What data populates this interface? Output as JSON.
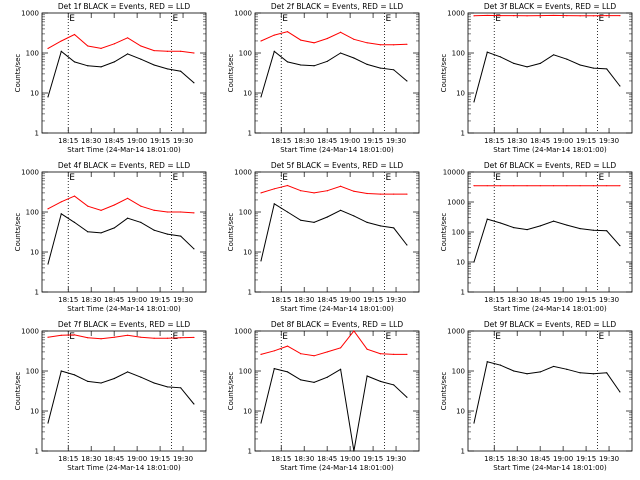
{
  "page": {
    "background": "#ffffff",
    "event_color": "#000000",
    "lld_color": "#ff0000"
  },
  "chart_data": [
    {
      "type": "line",
      "title": "Det 1f BLACK = Events, RED = LLD",
      "xlabel": "Start Time (24-Mar-14 18:01:00)",
      "ylabel": "Counts/sec",
      "x_ticks": [
        "18:15",
        "18:30",
        "18:45",
        "19:00",
        "19:15",
        "19:30"
      ],
      "y_ticks": [
        "1",
        "10",
        "100",
        "1000"
      ],
      "ylim": [
        1,
        1000
      ],
      "y_scale": "log",
      "markers": [
        "E",
        "E"
      ],
      "series": [
        {
          "name": "Events",
          "color": "#000000",
          "x": [
            0,
            1,
            2,
            3,
            4,
            5,
            6,
            7,
            8,
            9,
            10,
            11
          ],
          "values": [
            8,
            110,
            60,
            48,
            45,
            60,
            95,
            70,
            50,
            40,
            35,
            18
          ]
        },
        {
          "name": "LLD",
          "color": "#ff0000",
          "x": [
            0,
            1,
            2,
            3,
            4,
            5,
            6,
            7,
            8,
            9,
            10,
            11
          ],
          "values": [
            130,
            200,
            290,
            150,
            130,
            170,
            240,
            150,
            115,
            110,
            110,
            100
          ]
        }
      ]
    },
    {
      "type": "line",
      "title": "Det 2f BLACK = Events, RED = LLD",
      "xlabel": "Start Time (24-Mar-14 18:01:00)",
      "ylabel": "Counts/sec",
      "x_ticks": [
        "18:15",
        "18:30",
        "18:45",
        "19:00",
        "19:15",
        "19:30"
      ],
      "y_ticks": [
        "1",
        "10",
        "100",
        "1000"
      ],
      "ylim": [
        1,
        1000
      ],
      "y_scale": "log",
      "markers": [
        "E",
        "E"
      ],
      "series": [
        {
          "name": "Events",
          "color": "#000000",
          "x": [
            0,
            1,
            2,
            3,
            4,
            5,
            6,
            7,
            8,
            9,
            10,
            11
          ],
          "values": [
            8,
            110,
            60,
            50,
            48,
            62,
            100,
            75,
            52,
            42,
            38,
            20
          ]
        },
        {
          "name": "LLD",
          "color": "#ff0000",
          "x": [
            0,
            1,
            2,
            3,
            4,
            5,
            6,
            7,
            8,
            9,
            10,
            11
          ],
          "values": [
            200,
            280,
            340,
            210,
            180,
            230,
            330,
            220,
            180,
            160,
            160,
            165
          ]
        }
      ]
    },
    {
      "type": "line",
      "title": "Det 3f BLACK = Events, RED = LLD",
      "xlabel": "Start Time (24-Mar-14 18:01:00)",
      "ylabel": "Counts/sec",
      "x_ticks": [
        "18:15",
        "18:30",
        "18:45",
        "19:00",
        "19:15",
        "19:30"
      ],
      "y_ticks": [
        "1",
        "10",
        "100",
        "1000"
      ],
      "ylim": [
        1,
        1000
      ],
      "y_scale": "log",
      "markers": [
        "E",
        "E"
      ],
      "series": [
        {
          "name": "Events",
          "color": "#000000",
          "x": [
            0,
            1,
            2,
            3,
            4,
            5,
            6,
            7,
            8,
            9,
            10,
            11
          ],
          "values": [
            6,
            105,
            80,
            55,
            45,
            55,
            90,
            70,
            50,
            42,
            40,
            15
          ]
        },
        {
          "name": "LLD",
          "color": "#ff0000",
          "x": [
            0,
            1,
            2,
            3,
            4,
            5,
            6,
            7,
            8,
            9,
            10,
            11
          ],
          "values": [
            850,
            870,
            860,
            860,
            850,
            860,
            870,
            860,
            850,
            850,
            860,
            860
          ]
        }
      ]
    },
    {
      "type": "line",
      "title": "Det 4f BLACK = Events, RED = LLD",
      "xlabel": "Start Time (24-Mar-14 18:01:00)",
      "ylabel": "Counts/sec",
      "x_ticks": [
        "18:15",
        "18:30",
        "18:45",
        "19:00",
        "19:15",
        "19:30"
      ],
      "y_ticks": [
        "1",
        "10",
        "100",
        "1000"
      ],
      "ylim": [
        1,
        1000
      ],
      "y_scale": "log",
      "markers": [
        "E",
        "E"
      ],
      "series": [
        {
          "name": "Events",
          "color": "#000000",
          "x": [
            0,
            1,
            2,
            3,
            4,
            5,
            6,
            7,
            8,
            9,
            10,
            11
          ],
          "values": [
            5,
            90,
            55,
            32,
            30,
            40,
            70,
            55,
            35,
            28,
            25,
            12
          ]
        },
        {
          "name": "LLD",
          "color": "#ff0000",
          "x": [
            0,
            1,
            2,
            3,
            4,
            5,
            6,
            7,
            8,
            9,
            10,
            11
          ],
          "values": [
            120,
            180,
            250,
            140,
            110,
            150,
            220,
            140,
            110,
            100,
            100,
            95
          ]
        }
      ]
    },
    {
      "type": "line",
      "title": "Det 5f BLACK = Events, RED = LLD",
      "xlabel": "Start Time (24-Mar-14 18:01:00)",
      "ylabel": "Counts/sec",
      "x_ticks": [
        "18:15",
        "18:30",
        "18:45",
        "19:00",
        "19:15",
        "19:30"
      ],
      "y_ticks": [
        "1",
        "10",
        "100",
        "1000"
      ],
      "ylim": [
        1,
        1000
      ],
      "y_scale": "log",
      "markers": [
        "E",
        "E"
      ],
      "series": [
        {
          "name": "Events",
          "color": "#000000",
          "x": [
            0,
            1,
            2,
            3,
            4,
            5,
            6,
            7,
            8,
            9,
            10,
            11
          ],
          "values": [
            6,
            160,
            100,
            62,
            55,
            75,
            110,
            80,
            55,
            45,
            40,
            15
          ]
        },
        {
          "name": "LLD",
          "color": "#ff0000",
          "x": [
            0,
            1,
            2,
            3,
            4,
            5,
            6,
            7,
            8,
            9,
            10,
            11
          ],
          "values": [
            300,
            380,
            460,
            340,
            300,
            340,
            440,
            330,
            290,
            280,
            280,
            280
          ]
        }
      ]
    },
    {
      "type": "line",
      "title": "Det 6f BLACK = Events, RED = LLD",
      "xlabel": "Start Time (24-Mar-14 18:01:00)",
      "ylabel": "Counts/sec",
      "x_ticks": [
        "18:15",
        "18:30",
        "18:45",
        "19:00",
        "19:15",
        "19:30"
      ],
      "y_ticks": [
        "1",
        "10",
        "100",
        "1000",
        "10000"
      ],
      "ylim": [
        1,
        10000
      ],
      "y_scale": "log",
      "markers": [
        "E",
        "E"
      ],
      "series": [
        {
          "name": "Events",
          "color": "#000000",
          "x": [
            0,
            1,
            2,
            3,
            4,
            5,
            6,
            7,
            8,
            9,
            10,
            11
          ],
          "values": [
            10,
            270,
            200,
            140,
            120,
            160,
            230,
            170,
            130,
            115,
            110,
            35
          ]
        },
        {
          "name": "LLD",
          "color": "#ff0000",
          "x": [
            0,
            1,
            2,
            3,
            4,
            5,
            6,
            7,
            8,
            9,
            10,
            11
          ],
          "values": [
            3500,
            3500,
            3500,
            3500,
            3500,
            3500,
            3500,
            3500,
            3500,
            3500,
            3500,
            3500
          ]
        }
      ]
    },
    {
      "type": "line",
      "title": "Det 7f BLACK = Events, RED = LLD",
      "xlabel": "Start Time (24-Mar-14 18:01:00)",
      "ylabel": "Counts/sec",
      "x_ticks": [
        "18:15",
        "18:30",
        "18:45",
        "19:00",
        "19:15",
        "19:30"
      ],
      "y_ticks": [
        "1",
        "10",
        "100",
        "1000"
      ],
      "ylim": [
        1,
        1000
      ],
      "y_scale": "log",
      "markers": [
        "E",
        "E"
      ],
      "series": [
        {
          "name": "Events",
          "color": "#000000",
          "x": [
            0,
            1,
            2,
            3,
            4,
            5,
            6,
            7,
            8,
            9,
            10,
            11
          ],
          "values": [
            5,
            100,
            80,
            55,
            50,
            65,
            95,
            70,
            50,
            40,
            38,
            15
          ]
        },
        {
          "name": "LLD",
          "color": "#ff0000",
          "x": [
            0,
            1,
            2,
            3,
            4,
            5,
            6,
            7,
            8,
            9,
            10,
            11
          ],
          "values": [
            700,
            780,
            800,
            680,
            640,
            700,
            780,
            700,
            660,
            660,
            680,
            690
          ]
        }
      ]
    },
    {
      "type": "line",
      "title": "Det 8f BLACK = Events, RED = LLD",
      "xlabel": "Start Time (24-Mar-14 18:01:00)",
      "ylabel": "Counts/sec",
      "x_ticks": [
        "18:15",
        "18:30",
        "18:45",
        "19:00",
        "19:15",
        "19:30"
      ],
      "y_ticks": [
        "1",
        "10",
        "100",
        "1000"
      ],
      "ylim": [
        1,
        1000
      ],
      "y_scale": "log",
      "markers": [
        "E",
        "E"
      ],
      "series": [
        {
          "name": "Events",
          "color": "#000000",
          "x": [
            0,
            1,
            2,
            3,
            4,
            5,
            6,
            7,
            8,
            9,
            10,
            11
          ],
          "values": [
            5,
            115,
            95,
            60,
            52,
            70,
            110,
            1,
            75,
            55,
            45,
            22
          ]
        },
        {
          "name": "LLD",
          "color": "#ff0000",
          "x": [
            0,
            1,
            2,
            3,
            4,
            5,
            6,
            7,
            8,
            9,
            10,
            11
          ],
          "values": [
            260,
            320,
            420,
            270,
            240,
            300,
            380,
            1000,
            350,
            270,
            260,
            260
          ]
        }
      ]
    },
    {
      "type": "line",
      "title": "Det 9f BLACK = Events, RED = LLD",
      "xlabel": "Start Time (24-Mar-14 18:01:00)",
      "ylabel": "Counts/sec",
      "x_ticks": [
        "18:15",
        "18:30",
        "18:45",
        "19:00",
        "19:15",
        "19:30"
      ],
      "y_ticks": [
        "1",
        "10",
        "100",
        "1000"
      ],
      "ylim": [
        1,
        1000
      ],
      "y_scale": "log",
      "markers": [
        "E",
        "E"
      ],
      "series": [
        {
          "name": "Events",
          "color": "#000000",
          "x": [
            0,
            1,
            2,
            3,
            4,
            5,
            6,
            7,
            8,
            9,
            10,
            11
          ],
          "values": [
            5,
            170,
            140,
            100,
            85,
            95,
            130,
            110,
            90,
            85,
            90,
            30
          ]
        }
      ]
    }
  ]
}
